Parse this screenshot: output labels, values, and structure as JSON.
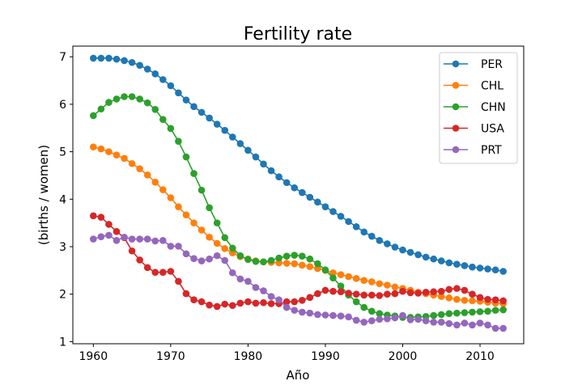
{
  "chart_data": {
    "type": "line",
    "title": "Fertility rate",
    "xlabel": "Año",
    "ylabel": "(births / women)",
    "xlim": [
      1957.35,
      2015.65
    ],
    "ylim": [
      0.955,
      7.225
    ],
    "xticks": [
      1960,
      1970,
      1980,
      1990,
      2000,
      2010
    ],
    "yticks": [
      1,
      2,
      3,
      4,
      5,
      6,
      7
    ],
    "grid": false,
    "legend_position": "top-right",
    "x": [
      1960,
      1961,
      1962,
      1963,
      1964,
      1965,
      1966,
      1967,
      1968,
      1969,
      1970,
      1971,
      1972,
      1973,
      1974,
      1975,
      1976,
      1977,
      1978,
      1979,
      1980,
      1981,
      1982,
      1983,
      1984,
      1985,
      1986,
      1987,
      1988,
      1989,
      1990,
      1991,
      1992,
      1993,
      1994,
      1995,
      1996,
      1997,
      1998,
      1999,
      2000,
      2001,
      2002,
      2003,
      2004,
      2005,
      2006,
      2007,
      2008,
      2009,
      2010,
      2011,
      2012,
      2013
    ],
    "series": [
      {
        "name": "PER",
        "color": "#1f77b4",
        "values": [
          6.97,
          6.97,
          6.97,
          6.95,
          6.92,
          6.88,
          6.82,
          6.74,
          6.64,
          6.52,
          6.39,
          6.24,
          6.09,
          5.95,
          5.83,
          5.71,
          5.58,
          5.45,
          5.31,
          5.17,
          5.03,
          4.89,
          4.74,
          4.6,
          4.47,
          4.35,
          4.24,
          4.14,
          4.04,
          3.94,
          3.84,
          3.74,
          3.64,
          3.53,
          3.42,
          3.31,
          3.22,
          3.13,
          3.06,
          2.99,
          2.93,
          2.88,
          2.83,
          2.78,
          2.74,
          2.7,
          2.66,
          2.63,
          2.6,
          2.57,
          2.55,
          2.53,
          2.51,
          2.48
        ]
      },
      {
        "name": "CHL",
        "color": "#ff7f0e",
        "values": [
          5.1,
          5.06,
          5.0,
          4.93,
          4.86,
          4.75,
          4.64,
          4.51,
          4.36,
          4.2,
          4.03,
          3.84,
          3.67,
          3.5,
          3.35,
          3.2,
          3.07,
          2.96,
          2.87,
          2.79,
          2.74,
          2.7,
          2.68,
          2.67,
          2.66,
          2.65,
          2.64,
          2.61,
          2.58,
          2.54,
          2.5,
          2.45,
          2.41,
          2.37,
          2.33,
          2.29,
          2.26,
          2.22,
          2.19,
          2.15,
          2.12,
          2.08,
          2.04,
          2.01,
          1.98,
          1.95,
          1.92,
          1.89,
          1.87,
          1.86,
          1.85,
          1.83,
          1.81,
          1.8
        ]
      },
      {
        "name": "CHN",
        "color": "#2ca02c",
        "values": [
          5.76,
          5.9,
          6.04,
          6.11,
          6.16,
          6.16,
          6.11,
          6.03,
          5.89,
          5.68,
          5.49,
          5.22,
          4.89,
          4.54,
          4.19,
          3.82,
          3.5,
          3.19,
          2.97,
          2.81,
          2.73,
          2.69,
          2.68,
          2.71,
          2.76,
          2.8,
          2.82,
          2.8,
          2.74,
          2.64,
          2.51,
          2.34,
          2.17,
          1.98,
          1.84,
          1.72,
          1.64,
          1.59,
          1.56,
          1.54,
          1.51,
          1.51,
          1.52,
          1.53,
          1.55,
          1.57,
          1.59,
          1.6,
          1.61,
          1.62,
          1.63,
          1.64,
          1.66,
          1.67
        ]
      },
      {
        "name": "USA",
        "color": "#d62728",
        "values": [
          3.65,
          3.62,
          3.47,
          3.32,
          3.19,
          2.91,
          2.72,
          2.56,
          2.46,
          2.46,
          2.48,
          2.27,
          2.01,
          1.88,
          1.84,
          1.77,
          1.74,
          1.79,
          1.76,
          1.81,
          1.84,
          1.81,
          1.82,
          1.8,
          1.8,
          1.84,
          1.84,
          1.87,
          1.93,
          2.01,
          2.08,
          2.06,
          2.05,
          2.02,
          2.0,
          1.98,
          1.98,
          1.97,
          2.0,
          2.01,
          2.06,
          2.03,
          2.02,
          2.04,
          2.05,
          2.06,
          2.1,
          2.12,
          2.08,
          2.0,
          1.93,
          1.89,
          1.88,
          1.86
        ]
      },
      {
        "name": "PRT",
        "color": "#9467bd",
        "values": [
          3.16,
          3.21,
          3.24,
          3.13,
          3.2,
          3.16,
          3.16,
          3.16,
          3.12,
          3.13,
          3.01,
          3.01,
          2.85,
          2.75,
          2.7,
          2.74,
          2.81,
          2.71,
          2.45,
          2.32,
          2.27,
          2.14,
          2.07,
          1.95,
          1.88,
          1.72,
          1.66,
          1.62,
          1.6,
          1.57,
          1.56,
          1.55,
          1.54,
          1.52,
          1.45,
          1.41,
          1.44,
          1.47,
          1.48,
          1.5,
          1.55,
          1.46,
          1.47,
          1.44,
          1.41,
          1.41,
          1.38,
          1.35,
          1.39,
          1.35,
          1.39,
          1.35,
          1.28,
          1.28
        ]
      }
    ]
  }
}
